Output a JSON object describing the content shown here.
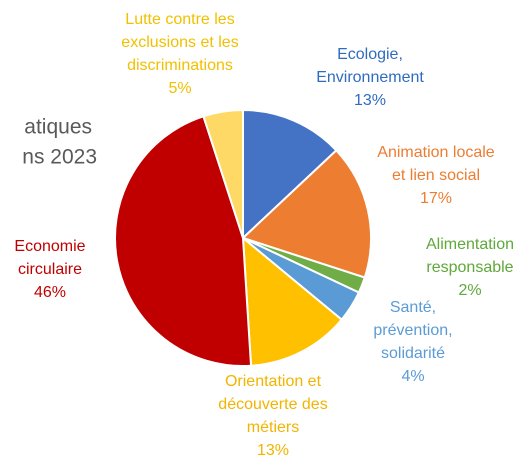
{
  "chart_data": {
    "type": "pie",
    "title": [
      "atiques",
      "ns 2023"
    ],
    "categories": [
      [
        "Ecologie,",
        "Environnement"
      ],
      [
        "Animation locale",
        "et lien social"
      ],
      [
        "Alimentation",
        "responsable"
      ],
      [
        "Santé,",
        "prévention,",
        "solidarité"
      ],
      [
        "Orientation et",
        "découverte des",
        "métiers"
      ],
      [
        "Economie",
        "circulaire"
      ],
      [
        "Lutte contre les",
        "exclusions et les",
        "discriminations"
      ]
    ],
    "values": [
      13,
      17,
      2,
      4,
      13,
      46,
      5
    ],
    "value_labels": [
      "13%",
      "17%",
      "2%",
      "4%",
      "13%",
      "46%",
      "5%"
    ],
    "colors": [
      "#4472c4",
      "#ed7d31",
      "#70ad47",
      "#5b9bd5",
      "#ffc000",
      "#c00000",
      "#ffd966"
    ],
    "label_colors": [
      "#2f6cc0",
      "#ed7d31",
      "#5fa83a",
      "#5b9bd5",
      "#f2b400",
      "#c00000",
      "#f2c000"
    ]
  }
}
